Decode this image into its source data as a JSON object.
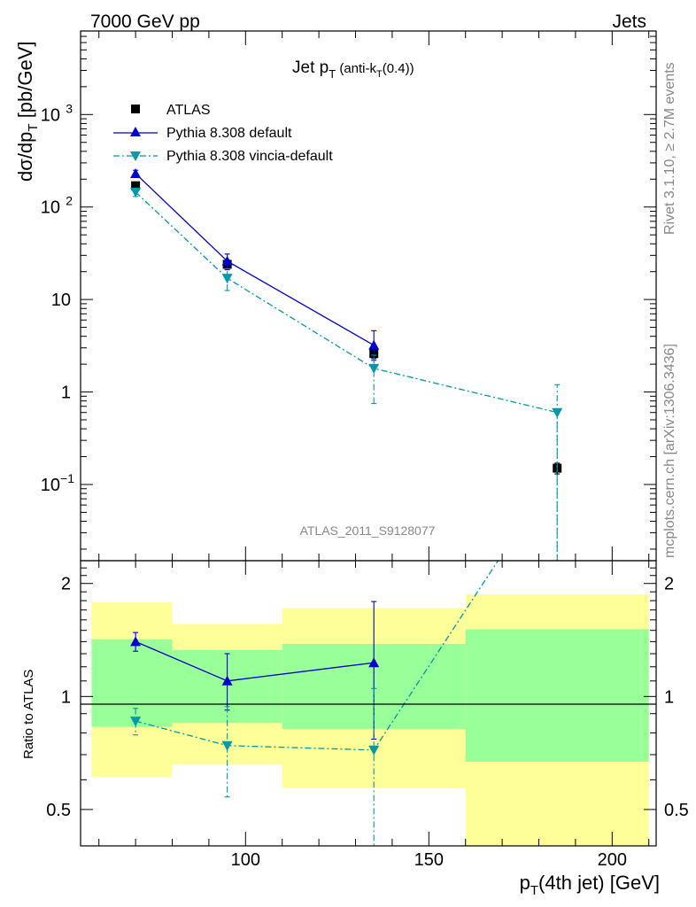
{
  "header": {
    "left": "7000 GeV pp",
    "right": "Jets"
  },
  "side_labels": {
    "rivet": "Rivet 3.1.10, ≥ 2.7M events",
    "mcplots": "mcplots.cern.ch [arXiv:1306.3436]"
  },
  "analysis_id": "ATLAS_2011_S9128077",
  "chart_data": [
    {
      "type": "line",
      "panel": "main",
      "title": "Jet p_T (anti-k_T(0.4))",
      "ylabel": "dσ/dp_T [pb/GeV]",
      "yscale": "log",
      "ylim": [
        0.015,
        8000
      ],
      "xlim": [
        55,
        212
      ],
      "ytick_labels": [
        "10^{-1}",
        "1",
        "10",
        "10^{2}",
        "10^{3}"
      ],
      "legend_position": "top-left",
      "legend": [
        "ATLAS",
        "Pythia 8.308 default",
        "Pythia 8.308 vincia-default"
      ],
      "series": [
        {
          "name": "ATLAS",
          "color": "#000000",
          "marker": "square",
          "x": [
            70,
            95,
            135,
            185
          ],
          "y": [
            170,
            24,
            2.6,
            0.15
          ],
          "yerr_lo": [
            12,
            2.5,
            0.3,
            0.02
          ],
          "yerr_hi": [
            12,
            2.5,
            0.3,
            0.02
          ],
          "xerr": [
            10,
            15,
            25,
            25
          ]
        },
        {
          "name": "Pythia 8.308 default",
          "color": "#0000cc",
          "marker": "triangle-up",
          "line": "solid",
          "x": [
            70,
            95,
            135
          ],
          "y": [
            230,
            26,
            3.2
          ],
          "yerr_lo": [
            20,
            5,
            1.0
          ],
          "yerr_hi": [
            20,
            5,
            1.4
          ]
        },
        {
          "name": "Pythia 8.308 vincia-default",
          "color": "#0099aa",
          "marker": "triangle-down",
          "line": "dashdot",
          "x": [
            70,
            95,
            135,
            185
          ],
          "y": [
            145,
            17,
            1.8,
            0.6
          ],
          "yerr_lo": [
            15,
            4.5,
            1.05,
            0.59
          ],
          "yerr_hi": [
            15,
            4.5,
            0.7,
            0.6
          ]
        }
      ]
    },
    {
      "type": "line",
      "panel": "ratio",
      "ylabel": "Ratio to ATLAS",
      "xlabel": "p_T(4th jet) [GeV]",
      "xlim": [
        55,
        212
      ],
      "ylim": [
        0.4,
        2.3
      ],
      "xticks": [
        100,
        150,
        200
      ],
      "yticks": [
        0.5,
        1,
        2
      ],
      "ytick_labels": [
        "0.5",
        "1",
        "2"
      ],
      "bands": {
        "x_edges": [
          58,
          80,
          110,
          160,
          210
        ],
        "inner_lo": [
          0.83,
          0.85,
          0.82,
          0.67
        ],
        "inner_hi": [
          1.42,
          1.33,
          1.38,
          1.51
        ],
        "outer_lo": [
          0.61,
          0.66,
          0.57,
          0.3
        ],
        "outer_hi": [
          1.78,
          1.56,
          1.72,
          1.87
        ],
        "inner_color": "#99ff99",
        "outer_color": "#ffff99"
      },
      "series": [
        {
          "name": "Pythia 8.308 default",
          "color": "#0000cc",
          "marker": "triangle-up",
          "x": [
            70,
            95,
            135
          ],
          "y": [
            1.4,
            1.1,
            1.23
          ],
          "yerr_lo": [
            0.08,
            0.18,
            0.46
          ],
          "yerr_hi": [
            0.08,
            0.2,
            0.56
          ]
        },
        {
          "name": "Pythia 8.308 vincia-default",
          "color": "#0099aa",
          "marker": "triangle-down",
          "x": [
            70,
            95,
            135,
            185
          ],
          "y": [
            0.86,
            0.74,
            0.72,
            4.0
          ],
          "yerr_lo": [
            0.07,
            0.2,
            0.33,
            0.0
          ],
          "yerr_hi": [
            0.07,
            0.2,
            0.33,
            0.0
          ]
        }
      ]
    }
  ]
}
